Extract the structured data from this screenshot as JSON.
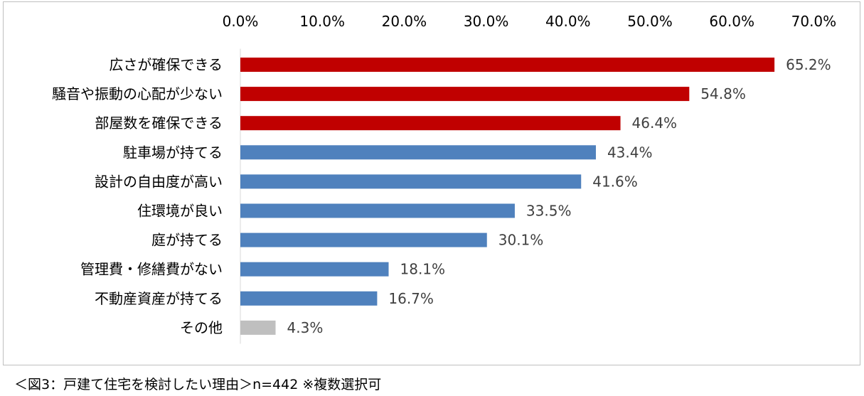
{
  "chart_data": {
    "type": "bar",
    "orientation": "horizontal",
    "axis_position": "top",
    "xlim": [
      0,
      70
    ],
    "ticks": [
      "0.0%",
      "10.0%",
      "20.0%",
      "30.0%",
      "40.0%",
      "50.0%",
      "60.0%",
      "70.0%"
    ],
    "tick_values": [
      0,
      10,
      20,
      30,
      40,
      50,
      60,
      70
    ],
    "grid": false,
    "legend": "none",
    "categories": [
      "広さが確保できる",
      "騒音や振動の心配が少ない",
      "部屋数を確保できる",
      "駐車場が持てる",
      "設計の自由度が高い",
      "住環境が良い",
      "庭が持てる",
      "管理費・修繕費がない",
      "不動産資産が持てる",
      "その他"
    ],
    "values": [
      65.2,
      54.8,
      46.4,
      43.4,
      41.6,
      33.5,
      30.1,
      18.1,
      16.7,
      4.3
    ],
    "value_labels": [
      "65.2%",
      "54.8%",
      "46.4%",
      "43.4%",
      "41.6%",
      "33.5%",
      "30.1%",
      "18.1%",
      "16.7%",
      "4.3%"
    ],
    "bar_colors": [
      "#c00000",
      "#c00000",
      "#c00000",
      "#4f81bd",
      "#4f81bd",
      "#4f81bd",
      "#4f81bd",
      "#4f81bd",
      "#4f81bd",
      "#bfbfbf"
    ]
  },
  "caption": "＜図3：戸建て住宅を検討したい理由＞n=442 ※複数選択可",
  "colors": {
    "highlight": "#c00000",
    "normal": "#4f81bd",
    "other": "#bfbfbf",
    "axis_line": "#d9d9d9"
  }
}
